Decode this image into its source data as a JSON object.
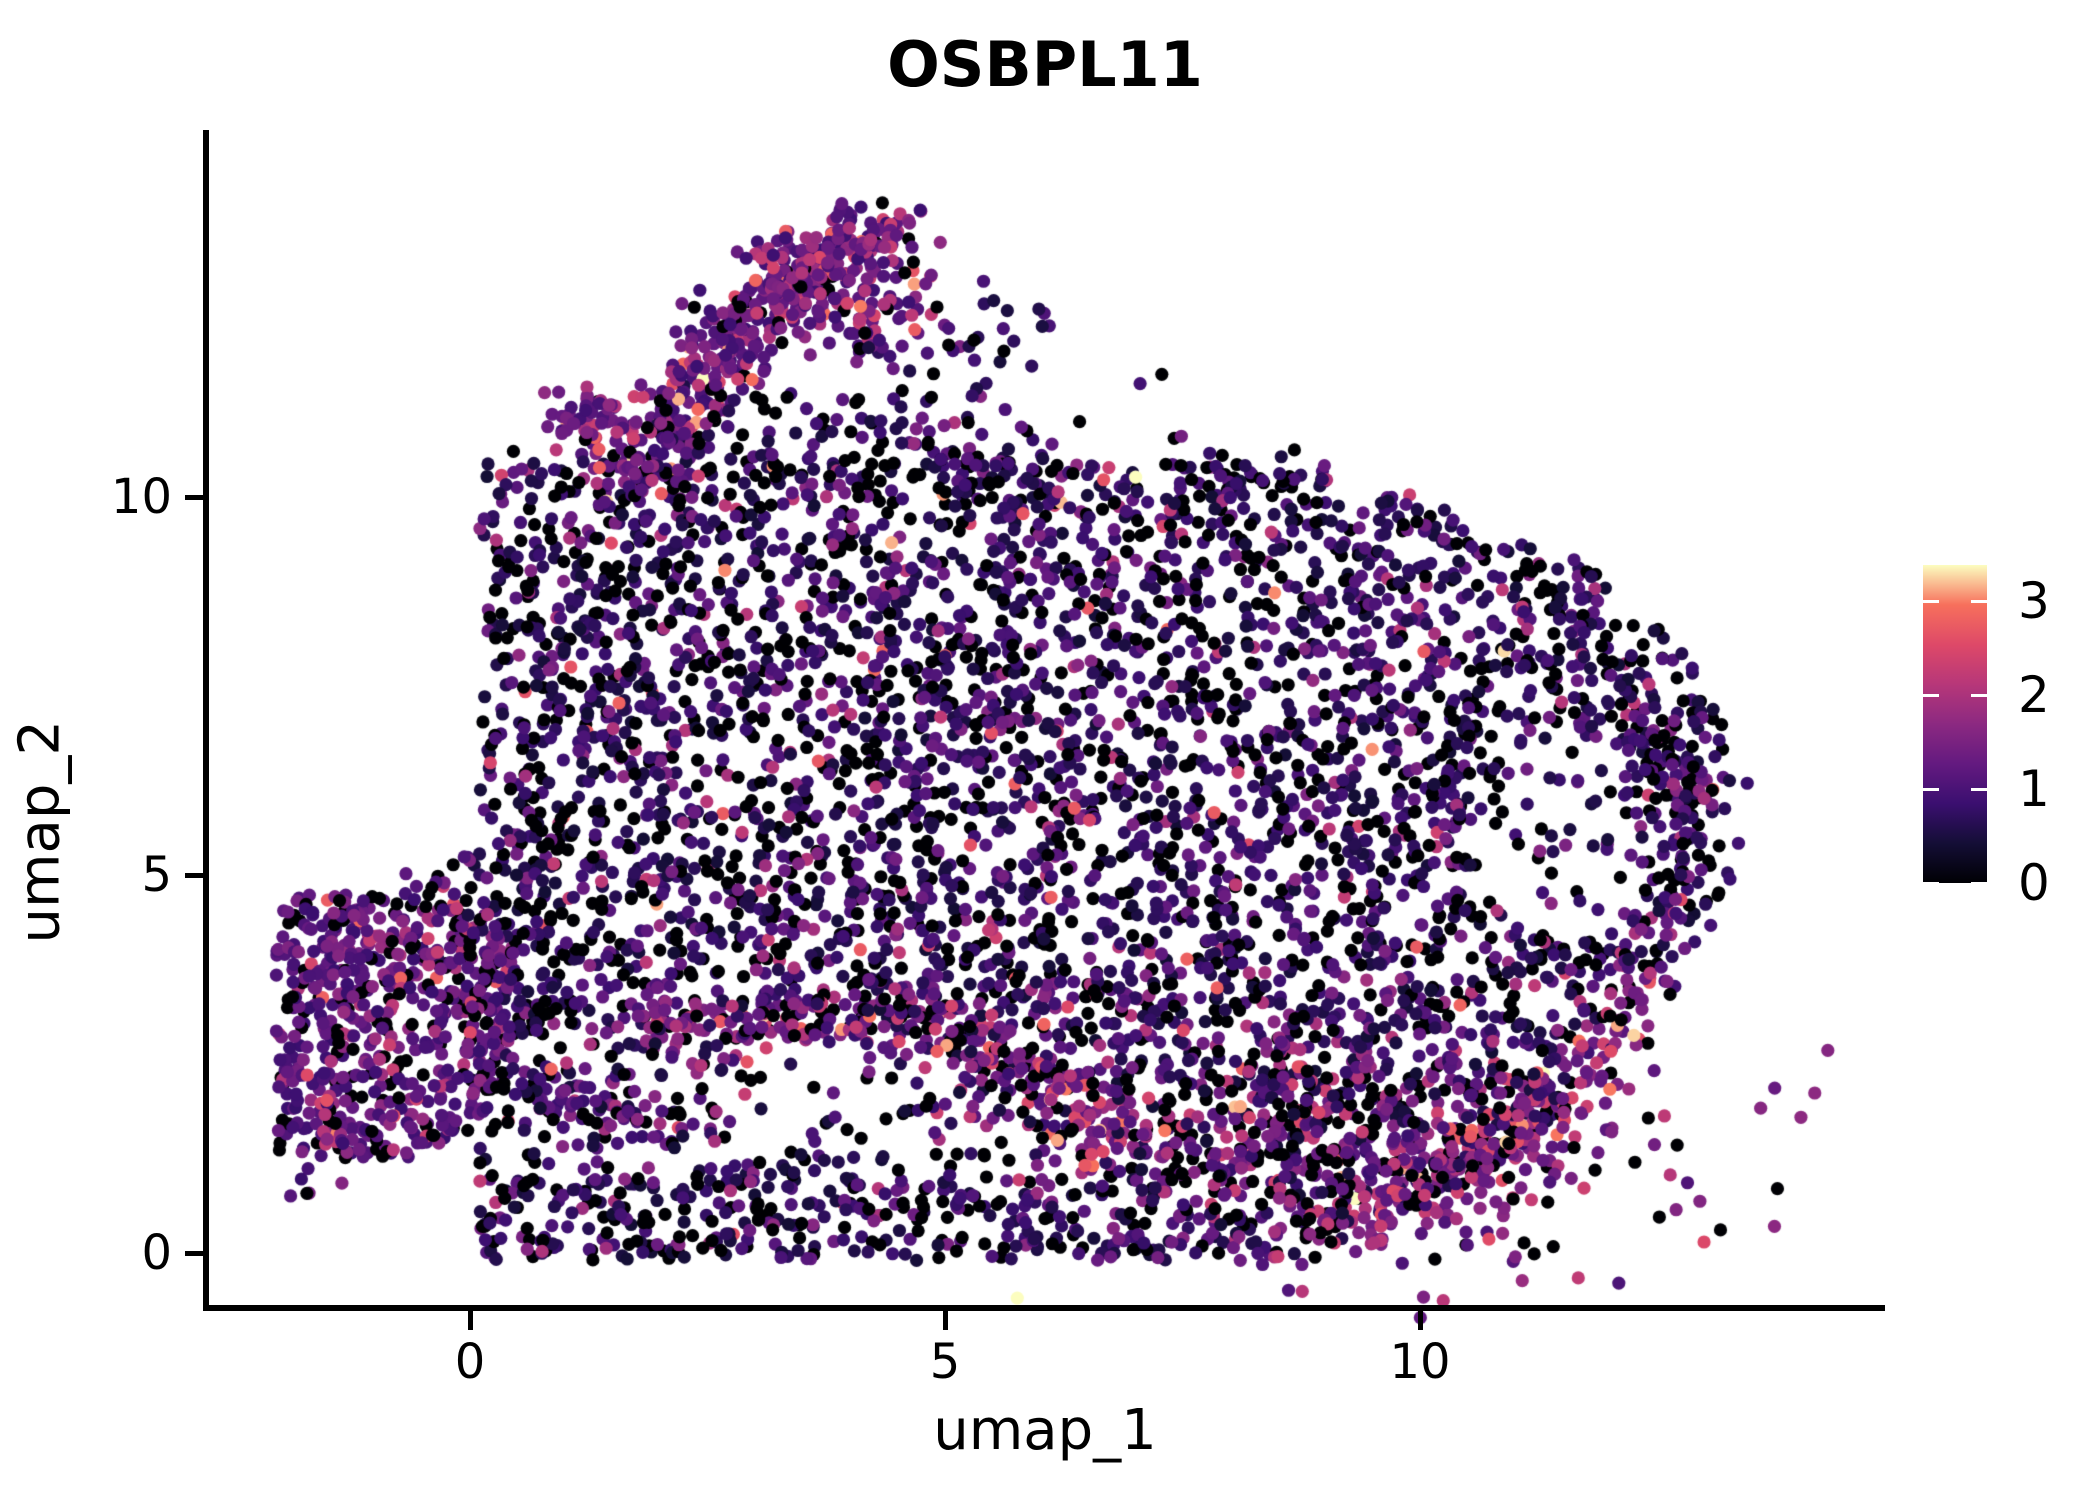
{
  "figure": {
    "title": "OSBPL11"
  },
  "axes": {
    "x": {
      "label": "umap_1",
      "ticks": [
        "0",
        "5",
        "10"
      ]
    },
    "y": {
      "label": "umap_2",
      "ticks": [
        "0",
        "5",
        "10"
      ]
    }
  },
  "colorbar_labels": [
    "0",
    "1",
    "2",
    "3"
  ],
  "chart_data": {
    "type": "scatter",
    "title": "OSBPL11",
    "xlabel": "umap_1",
    "ylabel": "umap_2",
    "x_tick_values": [
      0,
      5,
      10
    ],
    "y_tick_values": [
      0,
      5,
      10
    ],
    "x_range": [
      -2.8,
      14.9
    ],
    "y_range": [
      -0.7,
      14.8
    ],
    "grid": false,
    "legend_position": "right",
    "point_radius_px": 6.6,
    "seed": 1337,
    "colorbar": {
      "ticks": [
        0,
        1,
        2,
        3
      ],
      "vmax": 3.37,
      "colormap": "magma",
      "stops": [
        [
          0.0,
          "#000004"
        ],
        [
          0.125,
          "#140e36"
        ],
        [
          0.25,
          "#3b0f70"
        ],
        [
          0.375,
          "#641a80"
        ],
        [
          0.5,
          "#8c2981"
        ],
        [
          0.625,
          "#b73779"
        ],
        [
          0.75,
          "#de4968"
        ],
        [
          0.875,
          "#f7705c"
        ],
        [
          1.0,
          "#fcfdbf"
        ]
      ]
    },
    "value_profiles": {
      "main": {
        "p0": 0.3,
        "base": 0.4,
        "spread": 0.58,
        "hot_p": 0.05,
        "hot_base": 1.9,
        "orange_p": 0.012,
        "orange_base": 2.6
      },
      "dark": {
        "p0": 0.38,
        "base": 0.45,
        "spread": 0.5,
        "hot_p": 0.03,
        "hot_base": 1.9,
        "orange_p": 0.008,
        "orange_base": 2.6
      },
      "arm": {
        "p0": 0.07,
        "base": 0.85,
        "spread": 0.6,
        "hot_p": 0.12,
        "hot_base": 2.0,
        "orange_p": 0.035,
        "orange_base": 2.7
      },
      "bl": {
        "p0": 0.17,
        "base": 0.8,
        "spread": 0.55,
        "hot_p": 0.06,
        "hot_base": 1.95,
        "orange_p": 0.015,
        "orange_base": 2.55
      },
      "strand": {
        "p0": 0.1,
        "base": 1.1,
        "spread": 0.6,
        "hot_p": 0.14,
        "hot_base": 2.2,
        "orange_p": 0.05,
        "orange_base": 2.85
      },
      "hotlobe": {
        "p0": 0.2,
        "base": 1.0,
        "spread": 0.65,
        "hot_p": 0.13,
        "hot_base": 2.1,
        "orange_p": 0.045,
        "orange_base": 2.8
      },
      "edge": {
        "p0": 0.12,
        "base": 1.2,
        "spread": 0.65,
        "hot_p": 0.18,
        "hot_base": 2.2,
        "orange_p": 0.06,
        "orange_base": 2.9
      },
      "rim": {
        "p0": 0.3,
        "base": 0.6,
        "spread": 0.5,
        "hot_p": 0.04,
        "hot_base": 1.9,
        "orange_p": 0.008,
        "orange_base": 2.6
      }
    },
    "regions": [
      {
        "kind": "poly",
        "profile": "main",
        "count": 4900,
        "pts": [
          [
            0.8,
            9.0
          ],
          [
            1.3,
            9.75
          ],
          [
            2.0,
            10.25
          ],
          [
            3.2,
            10.45
          ],
          [
            4.4,
            10.3
          ],
          [
            5.6,
            10.45
          ],
          [
            6.8,
            10.35
          ],
          [
            7.9,
            10.45
          ],
          [
            9.0,
            10.25
          ],
          [
            9.9,
            10.05
          ],
          [
            10.8,
            9.5
          ],
          [
            11.8,
            9.1
          ],
          [
            12.8,
            7.9
          ],
          [
            13.2,
            7.0
          ],
          [
            13.3,
            6.3
          ],
          [
            13.0,
            5.3
          ],
          [
            12.95,
            4.5
          ],
          [
            12.5,
            3.7
          ],
          [
            12.05,
            2.7
          ],
          [
            11.4,
            1.7
          ],
          [
            10.6,
            0.95
          ],
          [
            9.7,
            0.35
          ],
          [
            8.8,
            -0.1
          ],
          [
            7.9,
            -0.05
          ],
          [
            7.1,
            0.35
          ],
          [
            6.3,
            0.75
          ],
          [
            5.5,
            1.05
          ],
          [
            4.7,
            1.3
          ],
          [
            4.15,
            1.6
          ],
          [
            3.95,
            2.2
          ],
          [
            4.3,
            2.75
          ],
          [
            3.5,
            3.2
          ],
          [
            2.5,
            3.45
          ],
          [
            1.6,
            3.9
          ],
          [
            1.0,
            4.4
          ],
          [
            0.5,
            5.2
          ],
          [
            0.15,
            6.2
          ],
          [
            0.1,
            7.2
          ],
          [
            0.45,
            8.2
          ]
        ],
        "holes": [
          {
            "type": "ellipse",
            "c": [
              11.6,
              5.5
            ],
            "r": [
              1.05,
              1.35
            ],
            "keep": 0.07
          },
          {
            "type": "poly",
            "keep": 0.45,
            "pts": [
              [
                4.6,
                2.95
              ],
              [
                5.6,
                2.5
              ],
              [
                6.6,
                2.0
              ],
              [
                7.45,
                1.55
              ],
              [
                7.1,
                1.0
              ],
              [
                6.15,
                1.45
              ],
              [
                5.15,
                1.95
              ],
              [
                4.35,
                2.35
              ]
            ]
          }
        ]
      },
      {
        "kind": "strand",
        "profile": "strand",
        "count": 270,
        "width": 0.22,
        "pts": [
          [
            1.7,
            3.1
          ],
          [
            2.8,
            2.95
          ],
          [
            3.9,
            3.05
          ],
          [
            4.75,
            3.2
          ],
          [
            5.35,
            2.7
          ],
          [
            5.95,
            2.2
          ],
          [
            6.6,
            1.75
          ],
          [
            7.3,
            1.45
          ]
        ]
      },
      {
        "kind": "gauss",
        "profile": "hotlobe",
        "count": 380,
        "c": [
          9.4,
          1.35
        ],
        "s": [
          1.6,
          0.75
        ]
      },
      {
        "kind": "strand",
        "profile": "edge",
        "count": 170,
        "width": 0.25,
        "pts": [
          [
            12.35,
            3.6
          ],
          [
            11.7,
            2.4
          ],
          [
            10.9,
            1.4
          ],
          [
            10.0,
            0.75
          ],
          [
            9.1,
            0.3
          ]
        ]
      },
      {
        "kind": "strand",
        "profile": "rim",
        "count": 150,
        "width": 0.28,
        "pts": [
          [
            12.2,
            7.2
          ],
          [
            12.75,
            6.4
          ],
          [
            12.85,
            5.4
          ],
          [
            12.6,
            4.5
          ],
          [
            12.15,
            3.9
          ]
        ]
      },
      {
        "kind": "gauss",
        "profile": "dark",
        "count": 28,
        "c": [
          11.6,
          5.5
        ],
        "s": [
          0.6,
          0.65
        ]
      },
      {
        "kind": "strand",
        "profile": "dark",
        "count": 55,
        "width": 0.3,
        "pts": [
          [
            2.3,
            10.55
          ],
          [
            4.2,
            10.7
          ],
          [
            6.3,
            10.5
          ]
        ]
      },
      {
        "kind": "strand",
        "profile": "dark",
        "count": 30,
        "width": 0.25,
        "pts": [
          [
            7.4,
            10.5
          ],
          [
            9.3,
            10.15
          ]
        ]
      },
      {
        "kind": "gauss",
        "profile": "arm",
        "count": 45,
        "c": [
          1.75,
          10.35
        ],
        "s": [
          0.3,
          0.3
        ]
      },
      {
        "kind": "gauss",
        "profile": "arm",
        "count": 55,
        "c": [
          2.05,
          10.9
        ],
        "s": [
          0.27,
          0.27
        ]
      },
      {
        "kind": "gauss",
        "profile": "arm",
        "count": 60,
        "c": [
          2.35,
          11.45
        ],
        "s": [
          0.27,
          0.27
        ]
      },
      {
        "kind": "gauss",
        "profile": "arm",
        "count": 65,
        "c": [
          2.7,
          12.0
        ],
        "s": [
          0.28,
          0.28
        ]
      },
      {
        "kind": "gauss",
        "profile": "arm",
        "count": 70,
        "c": [
          3.08,
          12.5
        ],
        "s": [
          0.28,
          0.28
        ]
      },
      {
        "kind": "gauss",
        "profile": "arm",
        "count": 70,
        "c": [
          3.5,
          12.95
        ],
        "s": [
          0.3,
          0.26
        ]
      },
      {
        "kind": "gauss",
        "profile": "arm",
        "count": 60,
        "c": [
          3.9,
          13.3
        ],
        "s": [
          0.28,
          0.22
        ]
      },
      {
        "kind": "gauss",
        "profile": "arm",
        "count": 35,
        "c": [
          4.28,
          13.55
        ],
        "s": [
          0.22,
          0.18
        ]
      },
      {
        "kind": "gauss",
        "profile": "arm",
        "count": 50,
        "c": [
          1.2,
          11.05
        ],
        "s": [
          0.22,
          0.22
        ]
      },
      {
        "kind": "gauss",
        "profile": "arm",
        "count": 75,
        "c": [
          4.05,
          12.35
        ],
        "s": [
          0.45,
          0.3
        ]
      },
      {
        "kind": "gauss",
        "profile": "dark",
        "count": 50,
        "c": [
          2.5,
          10.4
        ],
        "s": [
          0.75,
          0.5
        ]
      },
      {
        "kind": "gauss",
        "profile": "arm",
        "count": 30,
        "c": [
          4.6,
          12.9
        ],
        "s": [
          0.45,
          0.4
        ]
      },
      {
        "kind": "gauss",
        "profile": "dark",
        "count": 45,
        "c": [
          5.35,
          11.5
        ],
        "s": [
          0.85,
          0.8
        ]
      },
      {
        "kind": "gauss",
        "profile": "dark",
        "count": 35,
        "c": [
          4.4,
          10.85
        ],
        "s": [
          0.55,
          0.5
        ]
      },
      {
        "kind": "poly",
        "profile": "bl",
        "count": 640,
        "pts": [
          [
            -2.05,
            2.3
          ],
          [
            -1.9,
            3.4
          ],
          [
            -1.45,
            4.3
          ],
          [
            -0.75,
            4.75
          ],
          [
            0.0,
            4.6
          ],
          [
            0.45,
            4.05
          ],
          [
            0.55,
            3.2
          ],
          [
            0.45,
            2.4
          ],
          [
            0.0,
            1.6
          ],
          [
            -0.6,
            1.25
          ],
          [
            -1.35,
            1.3
          ],
          [
            -1.8,
            1.7
          ]
        ],
        "holes": []
      },
      {
        "kind": "gauss",
        "profile": "bl",
        "count": 10,
        "c": [
          -0.4,
          4.95
        ],
        "s": [
          0.2,
          0.15
        ]
      },
      {
        "kind": "gauss",
        "profile": "bl",
        "count": 30,
        "c": [
          1.1,
          2.1
        ],
        "s": [
          0.35,
          0.25
        ]
      },
      {
        "kind": "strand",
        "profile": "bl",
        "count": 45,
        "width": 0.18,
        "pts": [
          [
            0.55,
            2.05
          ],
          [
            1.5,
            1.7
          ],
          [
            2.45,
            1.9
          ]
        ]
      },
      {
        "kind": "gauss",
        "profile": "dark",
        "count": 40,
        "c": [
          0.8,
          3.6
        ],
        "s": [
          0.5,
          0.45
        ]
      },
      {
        "kind": "gauss",
        "profile": "bl",
        "count": 6,
        "c": [
          -1.55,
          0.85
        ],
        "s": [
          0.18,
          0.12
        ]
      },
      {
        "kind": "gauss",
        "profile": "dark",
        "count": 25,
        "c": [
          0.4,
          4.9
        ],
        "s": [
          0.4,
          0.35
        ]
      }
    ]
  }
}
